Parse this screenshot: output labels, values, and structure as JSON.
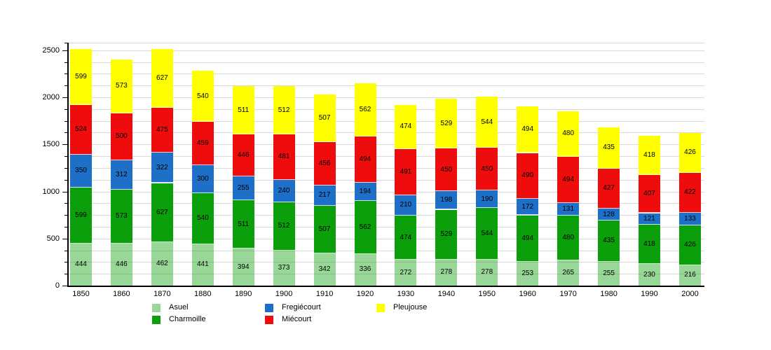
{
  "chart_data": {
    "type": "bar",
    "stacked": true,
    "title": "",
    "xlabel": "",
    "ylabel": "",
    "categories": [
      "1850",
      "1860",
      "1870",
      "1880",
      "1890",
      "1900",
      "1910",
      "1920",
      "1930",
      "1940",
      "1950",
      "1960",
      "1970",
      "1980",
      "1990",
      "2000"
    ],
    "series": [
      {
        "name": "Asuel",
        "color": "#0ba00b",
        "fill_opacity": 0.42,
        "values": [
          444,
          446,
          462,
          441,
          394,
          373,
          342,
          336,
          272,
          278,
          278,
          253,
          265,
          255,
          230,
          216
        ]
      },
      {
        "name": "Charmoille",
        "color": "#0ba00b",
        "fill_opacity": 1,
        "values": [
          599,
          573,
          627,
          540,
          511,
          512,
          507,
          562,
          474,
          529,
          544,
          494,
          480,
          435,
          418,
          426
        ]
      },
      {
        "name": "Fregiécourt",
        "color": "#1e6fc8",
        "fill_opacity": 1,
        "values": [
          350,
          312,
          322,
          300,
          255,
          240,
          217,
          194,
          210,
          198,
          190,
          172,
          131,
          128,
          121,
          133
        ]
      },
      {
        "name": "Miécourt",
        "color": "#ee0c0c",
        "fill_opacity": 1,
        "values": [
          524,
          500,
          475,
          459,
          446,
          481,
          456,
          494,
          491,
          450,
          450,
          490,
          494,
          427,
          407,
          422
        ]
      },
      {
        "name": "Pleujouse",
        "color": "#ffff00",
        "fill_opacity": 1,
        "values": [
          599,
          573,
          627,
          540,
          511,
          512,
          507,
          562,
          474,
          529,
          544,
          494,
          480,
          435,
          418,
          426
        ]
      }
    ],
    "value_labels": true,
    "y_axis": {
      "tick_values": [
        0,
        500,
        1000,
        1500,
        2000,
        2500
      ],
      "tick_labels": [
        "0",
        "500",
        "1000",
        "1500",
        "2000",
        "2500"
      ],
      "minor_step": 125,
      "max": 2580,
      "grid": true
    },
    "legend": {
      "position": "bottom",
      "items": [
        {
          "label": "Asuel",
          "col": 0,
          "row": 0
        },
        {
          "label": "Charmoille",
          "col": 0,
          "row": 1
        },
        {
          "label": "Fregiécourt",
          "col": 1,
          "row": 0
        },
        {
          "label": "Miécourt",
          "col": 1,
          "row": 1
        },
        {
          "label": "Pleujouse",
          "col": 2,
          "row": 0
        }
      ]
    },
    "colors": {
      "grid": "#d9d9d9",
      "axis": "#000000",
      "background": "#ffffff",
      "label_text": "#000000"
    }
  }
}
